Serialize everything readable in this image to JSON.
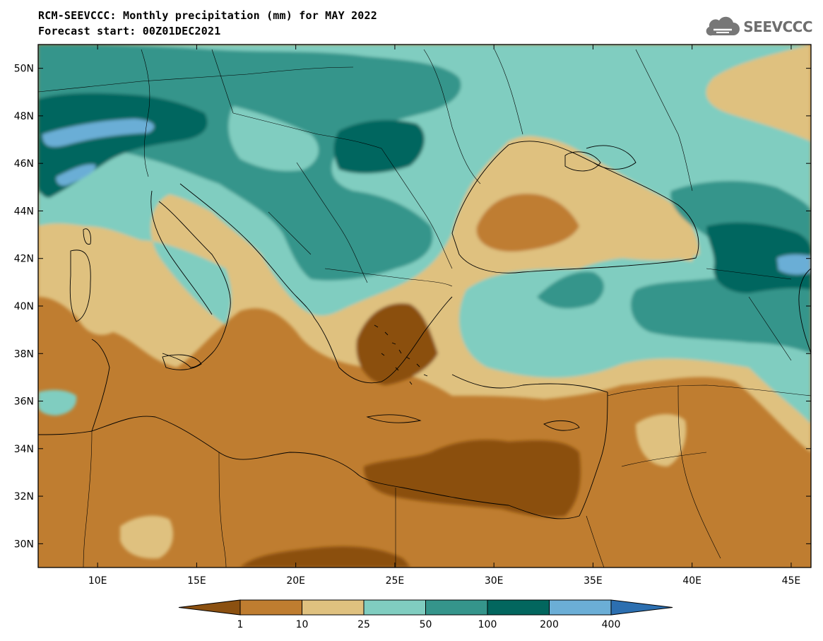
{
  "header": {
    "title": "RCM-SEEVCCC: Monthly precipitation (mm) for MAY 2022",
    "subtitle": "Forecast start: 00Z01DEC2021",
    "logo_text": "SEEVCCC"
  },
  "map": {
    "projection": "lat-lon",
    "lon_range": [
      7,
      46
    ],
    "lat_range": [
      29,
      51
    ],
    "x_ticks": [
      {
        "value": 10,
        "label": "10E"
      },
      {
        "value": 15,
        "label": "15E"
      },
      {
        "value": 20,
        "label": "20E"
      },
      {
        "value": 25,
        "label": "25E"
      },
      {
        "value": 30,
        "label": "30E"
      },
      {
        "value": 35,
        "label": "35E"
      },
      {
        "value": 40,
        "label": "40E"
      },
      {
        "value": 45,
        "label": "45E"
      }
    ],
    "y_ticks": [
      {
        "value": 50,
        "label": "50N"
      },
      {
        "value": 48,
        "label": "48N"
      },
      {
        "value": 46,
        "label": "46N"
      },
      {
        "value": 44,
        "label": "44N"
      },
      {
        "value": 42,
        "label": "42N"
      },
      {
        "value": 40,
        "label": "40N"
      },
      {
        "value": 38,
        "label": "38N"
      },
      {
        "value": 36,
        "label": "36N"
      },
      {
        "value": 34,
        "label": "34N"
      },
      {
        "value": 32,
        "label": "32N"
      },
      {
        "value": 30,
        "label": "30N"
      }
    ]
  },
  "colorbar": {
    "labels": [
      "1",
      "10",
      "25",
      "50",
      "100",
      "200",
      "400"
    ],
    "colors": {
      "below_1": "#8b5010",
      "1_10": "#bf7d30",
      "10_25": "#dfc17f",
      "25_50": "#80cdc0",
      "50_100": "#35958b",
      "100_200": "#02665e",
      "200_400": "#6baed6",
      "above_400": "#2c6fb0"
    }
  }
}
